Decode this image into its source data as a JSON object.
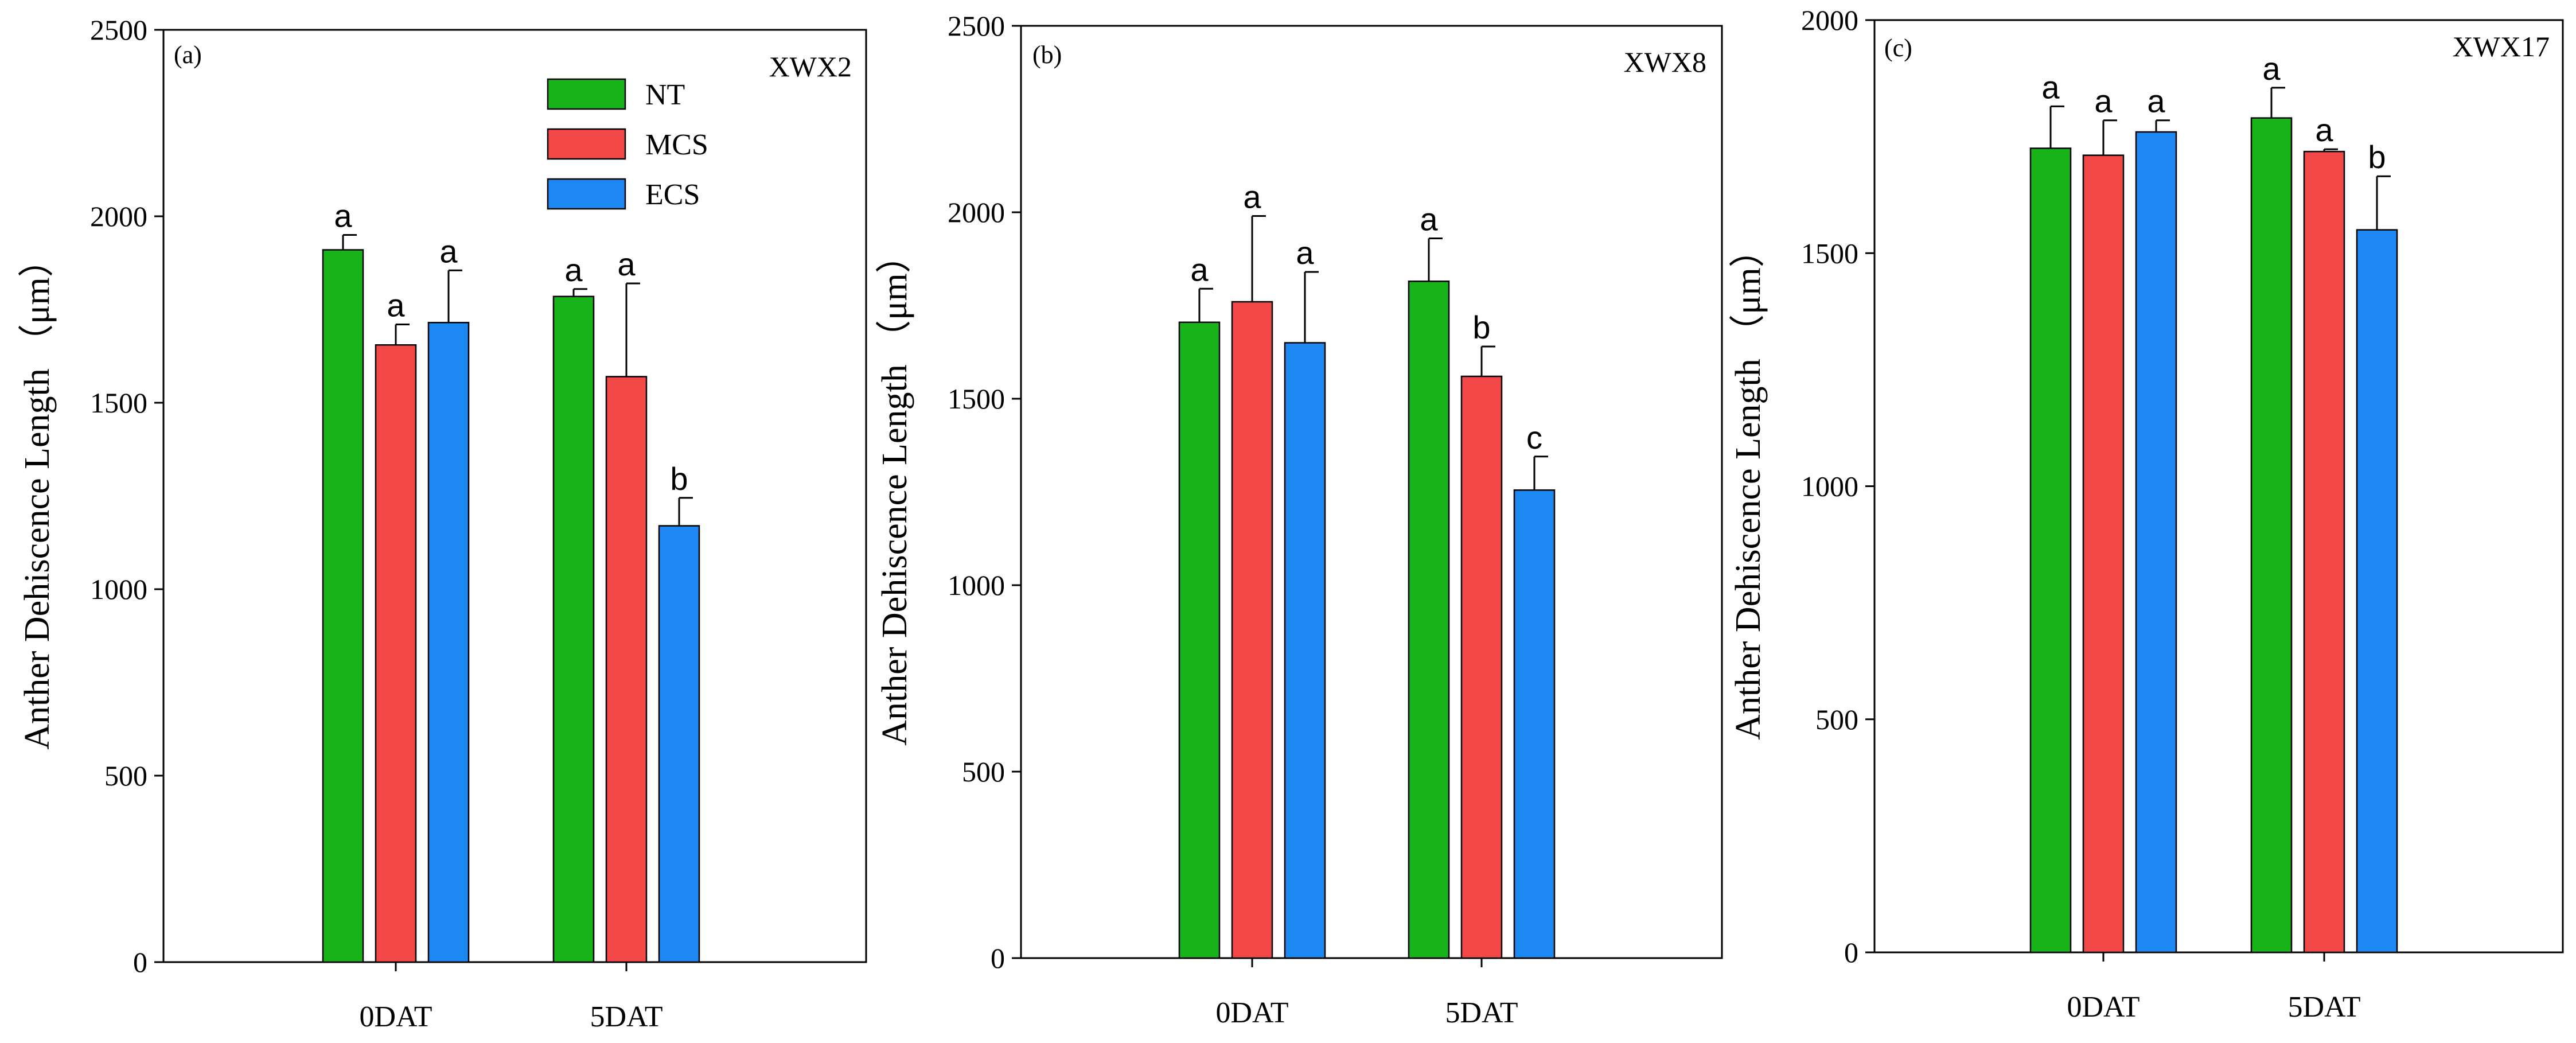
{
  "chart_data": [
    {
      "type": "bar",
      "panel_label": "(a)",
      "cultivar": "XWX2",
      "title": "",
      "xlabel": "",
      "ylabel": "Anther Dehiscence Length （μm）",
      "ylim": [
        0,
        2500
      ],
      "yticks": [
        0,
        500,
        1000,
        1500,
        2000,
        2500
      ],
      "categories": [
        "0DAT",
        "5DAT"
      ],
      "legend": {
        "position": "top-center",
        "entries": [
          "NT",
          "MCS",
          "ECS"
        ]
      },
      "series": [
        {
          "name": "NT",
          "color": "#18b318",
          "values": [
            1910,
            1785
          ],
          "errors": [
            40,
            20
          ],
          "letters": [
            "a",
            "a"
          ]
        },
        {
          "name": "MCS",
          "color": "#f24848",
          "values": [
            1655,
            1570
          ],
          "errors": [
            55,
            250
          ],
          "letters": [
            "a",
            "a"
          ]
        },
        {
          "name": "ECS",
          "color": "#1e88f2",
          "values": [
            1715,
            1170
          ],
          "errors": [
            140,
            75
          ],
          "letters": [
            "a",
            "b"
          ]
        }
      ]
    },
    {
      "type": "bar",
      "panel_label": "(b)",
      "cultivar": "XWX8",
      "title": "",
      "xlabel": "",
      "ylabel": "Anther Dehiscence Length （μm）",
      "ylim": [
        0,
        2500
      ],
      "yticks": [
        0,
        500,
        1000,
        1500,
        2000,
        2500
      ],
      "categories": [
        "0DAT",
        "5DAT"
      ],
      "legend": {
        "position": "none",
        "entries": []
      },
      "series": [
        {
          "name": "NT",
          "color": "#18b318",
          "values": [
            1705,
            1815
          ],
          "errors": [
            90,
            115
          ],
          "letters": [
            "a",
            "a"
          ]
        },
        {
          "name": "MCS",
          "color": "#f24848",
          "values": [
            1760,
            1560
          ],
          "errors": [
            230,
            80
          ],
          "letters": [
            "a",
            "b"
          ]
        },
        {
          "name": "ECS",
          "color": "#1e88f2",
          "values": [
            1650,
            1255
          ],
          "errors": [
            190,
            90
          ],
          "letters": [
            "a",
            "c"
          ]
        }
      ]
    },
    {
      "type": "bar",
      "panel_label": "(c)",
      "cultivar": "XWX17",
      "title": "",
      "xlabel": "",
      "ylabel": "Anther Dehiscence Length （μm）",
      "ylim": [
        0,
        2000
      ],
      "yticks": [
        0,
        500,
        1000,
        1500,
        2000
      ],
      "categories": [
        "0DAT",
        "5DAT"
      ],
      "legend": {
        "position": "none",
        "entries": []
      },
      "series": [
        {
          "name": "NT",
          "color": "#18b318",
          "values": [
            1725,
            1790
          ],
          "errors": [
            90,
            65
          ],
          "letters": [
            "a",
            "a"
          ]
        },
        {
          "name": "MCS",
          "color": "#f24848",
          "values": [
            1710,
            1718
          ],
          "errors": [
            75,
            5
          ],
          "letters": [
            "a",
            "a"
          ]
        },
        {
          "name": "ECS",
          "color": "#1e88f2",
          "values": [
            1760,
            1550
          ],
          "errors": [
            25,
            115
          ],
          "letters": [
            "a",
            "b"
          ]
        }
      ]
    }
  ]
}
